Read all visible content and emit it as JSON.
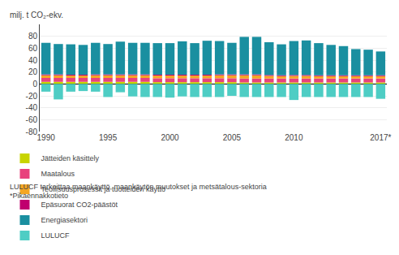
{
  "chart_data": {
    "type": "bar",
    "stacked": true,
    "ylabel": "milj. t CO₂-ekv.",
    "categories": [
      "1990",
      null,
      null,
      null,
      null,
      "1995",
      null,
      null,
      null,
      null,
      "2000",
      null,
      null,
      null,
      null,
      "2005",
      null,
      null,
      null,
      null,
      "2010",
      null,
      null,
      null,
      null,
      null,
      null,
      "2017*"
    ],
    "series": [
      {
        "name": "Jätteiden käsittely",
        "color": "#c8d400",
        "values": [
          3.5,
          3.5,
          3.5,
          3.5,
          3.5,
          3.5,
          3.5,
          3.5,
          3.5,
          3.0,
          3.0,
          3.0,
          3.0,
          3.0,
          3.0,
          3.0,
          2.5,
          2.5,
          2.5,
          2.5,
          2.5,
          2.5,
          2.5,
          2.5,
          2.5,
          2.5,
          2.5,
          2.5
        ]
      },
      {
        "name": "Maatalous",
        "color": "#e8417d",
        "values": [
          6.5,
          6.5,
          6.5,
          6.5,
          6.5,
          6.5,
          6.5,
          6.5,
          6.5,
          6.5,
          6.5,
          6.5,
          6.5,
          6.5,
          6.5,
          6.5,
          6.5,
          6.5,
          6.5,
          6.5,
          6.5,
          6.5,
          6.5,
          6.5,
          6.5,
          6.5,
          6.5,
          6.5
        ]
      },
      {
        "name": "Teollisuusprosessit ja tuotteiden käyttö",
        "color": "#f5a623",
        "values": [
          4.5,
          4.5,
          4.0,
          4.0,
          4.5,
          4.5,
          4.5,
          4.5,
          4.5,
          4.5,
          4.5,
          4.5,
          4.5,
          4.5,
          5.0,
          5.0,
          5.5,
          5.5,
          4.5,
          4.0,
          4.5,
          4.5,
          4.0,
          4.0,
          4.0,
          4.0,
          4.0,
          4.0
        ]
      },
      {
        "name": "Epäsuorat CO2-päästöt",
        "color": "#c0006e",
        "values": [
          1.5,
          1.5,
          1.5,
          1.5,
          1.5,
          1.5,
          1.5,
          1.5,
          1.5,
          1.5,
          1.5,
          1.5,
          1.5,
          1.5,
          1.5,
          1.5,
          1.5,
          1.5,
          1.5,
          1.5,
          1.5,
          1.5,
          1.5,
          1.5,
          1.5,
          1.5,
          1.5,
          1.5
        ]
      },
      {
        "name": "Energiasektori",
        "color": "#1a8fa0",
        "values": [
          53,
          51,
          51,
          50,
          53,
          51,
          55,
          53,
          53,
          53,
          53,
          56,
          53,
          57,
          56,
          53,
          63,
          63,
          55,
          52,
          57,
          58,
          54,
          51,
          49,
          44,
          43,
          40
        ]
      },
      {
        "name": "LULUCF",
        "color": "#4ecdc4",
        "values": [
          -13,
          -26,
          -13,
          -12,
          -13,
          -22,
          -14,
          -21,
          -22,
          -22,
          -23,
          -21,
          -22,
          -22,
          -22,
          -20,
          -22,
          -22,
          -22,
          -22,
          -27,
          -22,
          -22,
          -22,
          -22,
          -22,
          -22,
          -25
        ]
      }
    ],
    "ylim": [
      -80,
      100
    ],
    "yticks": [
      -80,
      -60,
      -40,
      -20,
      0,
      20,
      40,
      60,
      80
    ],
    "grid": true,
    "legend": "bottom",
    "annotations": [
      "LULUCF tarkoittaa maankäyttö, maankäytön muutokset ja metsätalous-sektoria",
      "*Pikaennakkotieto"
    ]
  }
}
